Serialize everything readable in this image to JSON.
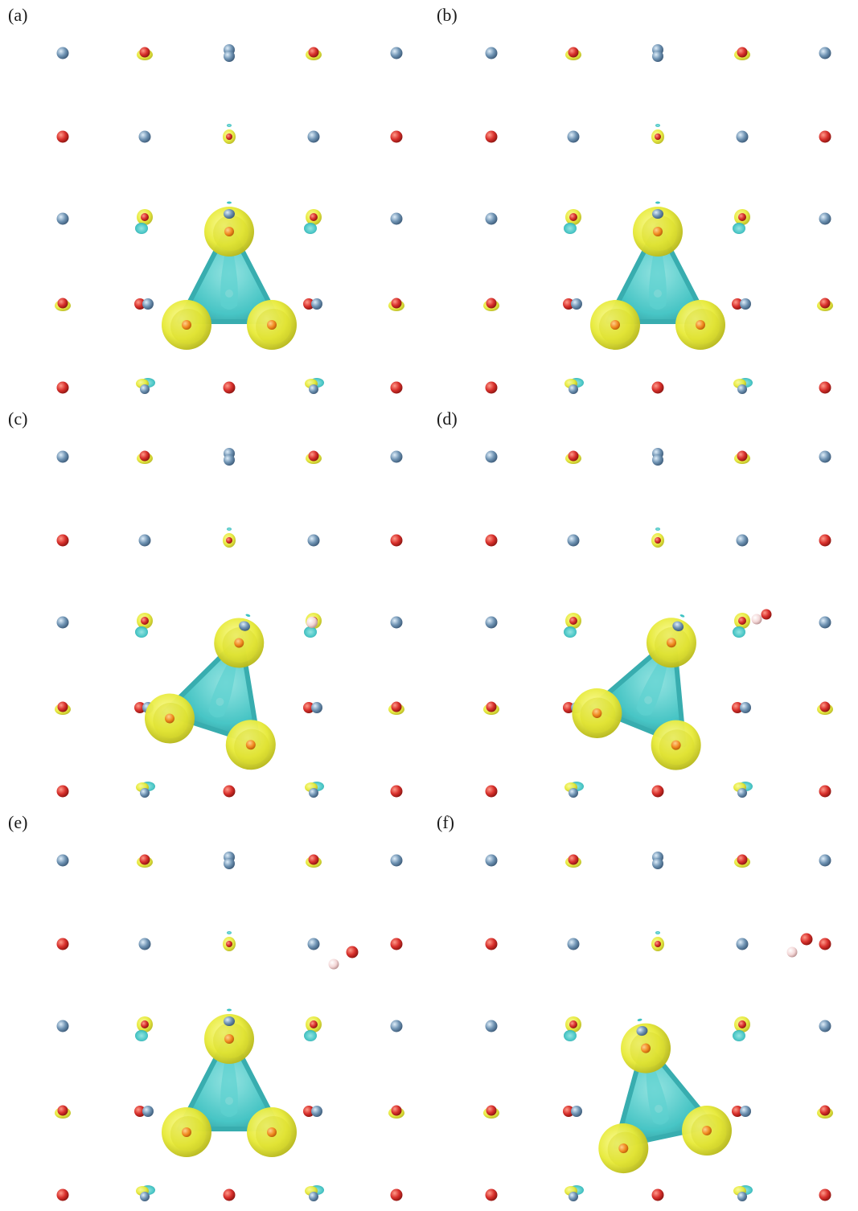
{
  "figure": {
    "panels": [
      {
        "label": "(a)",
        "variant": "a"
      },
      {
        "label": "(b)",
        "variant": "b"
      },
      {
        "label": "(c)",
        "variant": "c"
      },
      {
        "label": "(d)",
        "variant": "d"
      },
      {
        "label": "(e)",
        "variant": "e"
      },
      {
        "label": "(f)",
        "variant": "f"
      }
    ]
  },
  "colors": {
    "oxygen_red": "#d8302c",
    "metal_blue": "#6f93b3",
    "hydrogen_pink": "#f3d6d6",
    "isosurface_yellow": "#e7ea3a",
    "isosurface_cyan": "#3fc3c3",
    "center_orange": "#f08a20"
  }
}
